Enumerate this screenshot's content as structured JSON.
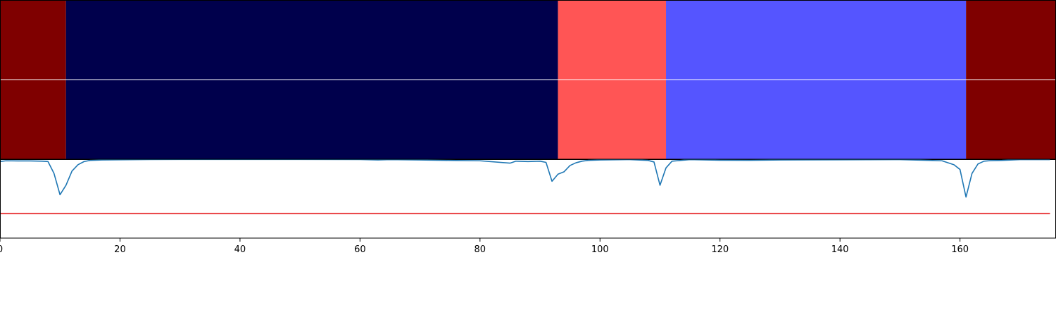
{
  "chart_data": [
    {
      "type": "heatmap",
      "title": "",
      "xlim": [
        0,
        176
      ],
      "rows": 2,
      "segments": [
        {
          "x_start": 0,
          "x_end": 11,
          "color": "#7f0000"
        },
        {
          "x_start": 11,
          "x_end": 93,
          "color": "#00004c"
        },
        {
          "x_start": 93,
          "x_end": 111,
          "color": "#ff5555"
        },
        {
          "x_start": 111,
          "x_end": 161,
          "color": "#5555ff"
        },
        {
          "x_start": 161,
          "x_end": 176,
          "color": "#7f0000"
        }
      ],
      "row_divider_color": "#ffffff"
    },
    {
      "type": "line",
      "title": "",
      "xlabel": "",
      "ylabel": "",
      "xlim": [
        0,
        176
      ],
      "ylim": [
        0,
        1
      ],
      "grid": false,
      "legend": "none",
      "x_ticks": [
        0,
        20,
        40,
        60,
        80,
        100,
        120,
        140,
        160
      ],
      "x_tick_labels": [
        "0",
        "20",
        "40",
        "60",
        "80",
        "100",
        "120",
        "140",
        "160"
      ],
      "series": [
        {
          "color": "#1f77b4",
          "x": [
            0,
            1,
            3,
            5,
            7,
            8,
            9,
            10,
            11,
            12,
            13,
            14,
            15,
            17,
            20,
            25,
            30,
            40,
            50,
            60,
            63,
            65,
            70,
            75,
            80,
            85,
            86,
            88,
            90,
            91,
            92,
            93,
            94,
            95,
            96,
            97,
            98,
            100,
            105,
            108,
            109,
            110,
            111,
            112,
            115,
            120,
            125,
            130,
            140,
            150,
            155,
            157,
            159,
            160,
            161,
            162,
            163,
            164,
            165,
            167,
            170,
            175
          ],
          "values": [
            0.97,
            0.98,
            0.978,
            0.978,
            0.975,
            0.97,
            0.82,
            0.55,
            0.67,
            0.85,
            0.93,
            0.97,
            0.985,
            0.99,
            0.993,
            0.996,
            0.997,
            0.997,
            0.997,
            0.996,
            0.99,
            0.995,
            0.99,
            0.985,
            0.98,
            0.95,
            0.975,
            0.97,
            0.975,
            0.96,
            0.72,
            0.81,
            0.84,
            0.92,
            0.955,
            0.975,
            0.985,
            0.99,
            0.995,
            0.985,
            0.965,
            0.67,
            0.89,
            0.975,
            0.995,
            0.987,
            0.986,
            0.99,
            0.993,
            0.995,
            0.985,
            0.98,
            0.93,
            0.87,
            0.52,
            0.82,
            0.94,
            0.975,
            0.982,
            0.985,
            0.995,
            0.995
          ]
        },
        {
          "color": "#e41a1c",
          "x": [
            0,
            175
          ],
          "values": [
            0.31,
            0.31
          ]
        }
      ]
    }
  ]
}
